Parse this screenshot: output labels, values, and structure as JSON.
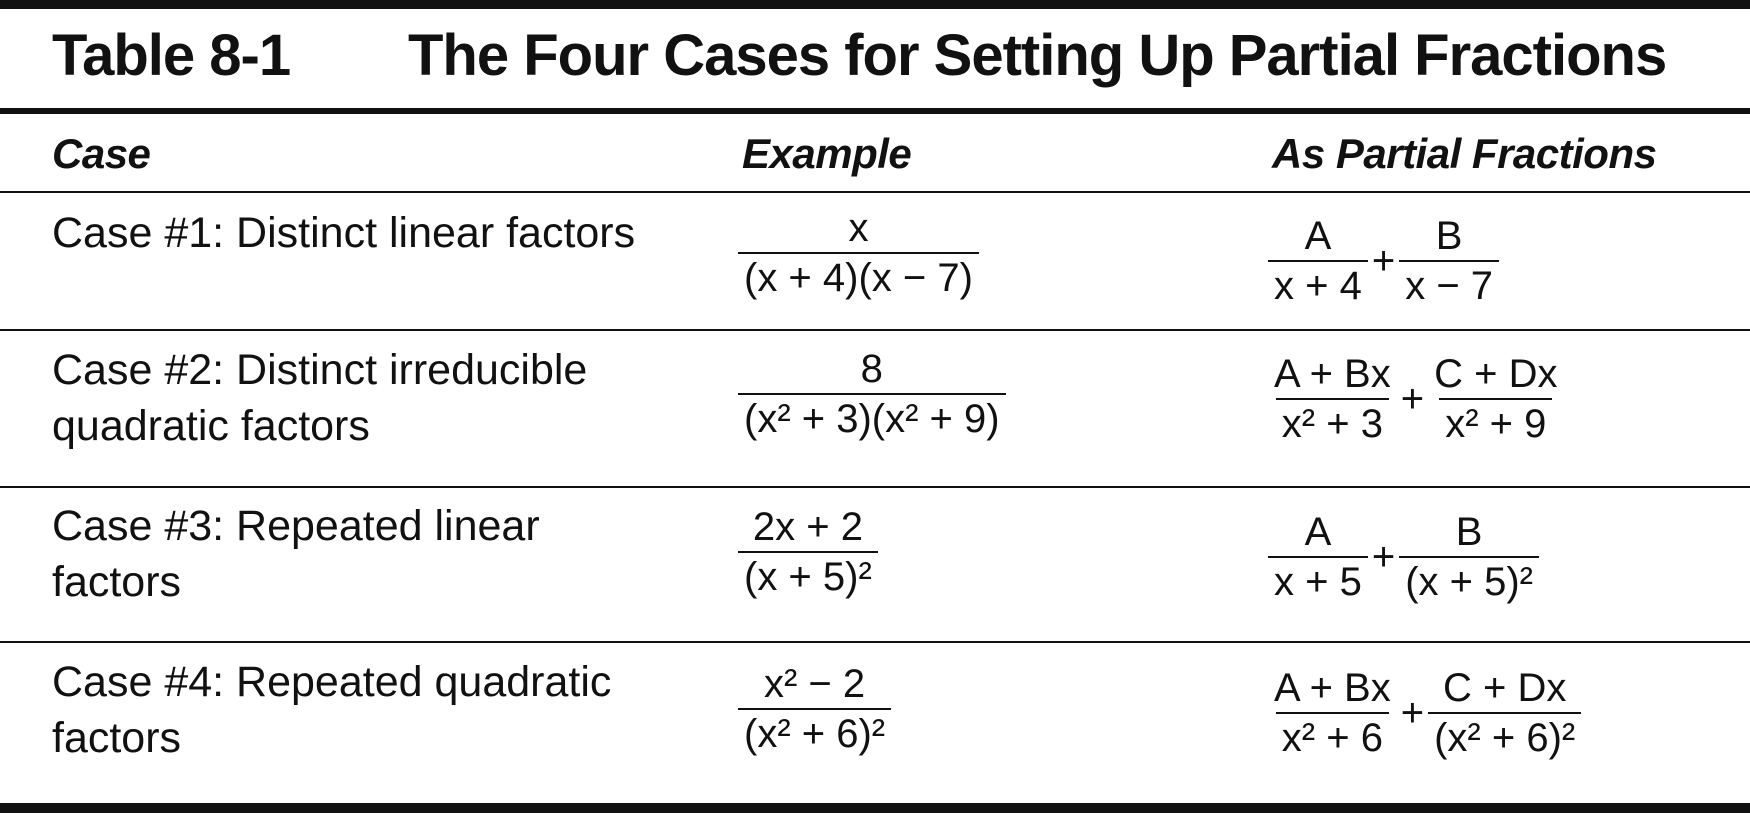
{
  "table": {
    "label": "Table 8-1",
    "title": "The Four Cases for Setting Up Partial Fractions",
    "headers": [
      "Case",
      "Example",
      "As Partial Fractions"
    ],
    "rows": [
      {
        "case": "Case #1: Distinct linear factors",
        "example": {
          "num": "x",
          "den": "(x + 4)(x − 7)"
        },
        "partial": [
          {
            "num": "A",
            "den": "x + 4"
          },
          {
            "num": "B",
            "den": "x − 7"
          }
        ]
      },
      {
        "case": "Case #2: Distinct irreducible quadratic factors",
        "example": {
          "num": "8",
          "den": "(x² + 3)(x² + 9)"
        },
        "partial": [
          {
            "num": "A + Bx",
            "den": "x² + 3"
          },
          {
            "num": "C + Dx",
            "den": "x² + 9"
          }
        ]
      },
      {
        "case": "Case #3: Repeated linear factors",
        "example": {
          "num": "2x + 2",
          "den": "(x + 5)²"
        },
        "partial": [
          {
            "num": "A",
            "den": "x + 5"
          },
          {
            "num": "B",
            "den": "(x + 5)²"
          }
        ]
      },
      {
        "case": "Case #4: Repeated quadratic factors",
        "example": {
          "num": "x² − 2",
          "den": "(x² + 6)²"
        },
        "partial": [
          {
            "num": "A + Bx",
            "den": "x² + 6"
          },
          {
            "num": "C + Dx",
            "den": "(x² + 6)²"
          }
        ]
      }
    ],
    "plus": "+"
  }
}
